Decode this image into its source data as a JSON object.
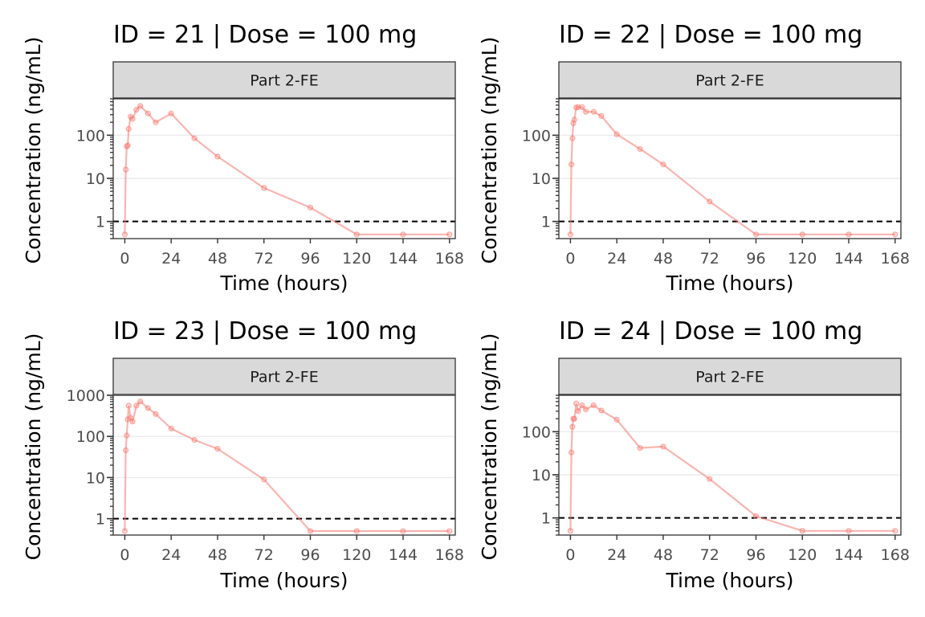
{
  "figure": {
    "colors": {
      "series": "#F8766D",
      "lloq_line": "#000000",
      "strip_fill": "#D9D9D9",
      "grid": "#EBEBEB"
    }
  },
  "chart_data": [
    {
      "type": "line",
      "title": "ID = 21 | Dose = 100 mg",
      "facet": "Part 2-FE",
      "xlabel": "Time (hours)",
      "ylabel": "Concentration (ng/mL)",
      "xlim": [
        -6,
        171
      ],
      "xticks": [
        0,
        24,
        48,
        72,
        96,
        120,
        144,
        168
      ],
      "yscale": "log",
      "ylim": [
        0.4,
        700
      ],
      "yticks": [
        1,
        10,
        100
      ],
      "ytick_labels": [
        "1",
        "10",
        "100"
      ],
      "reference_line": {
        "y": 1,
        "style": "dashed"
      },
      "grid": true,
      "x": [
        0,
        0.5,
        1,
        1.5,
        2,
        3,
        4,
        6,
        8,
        12,
        16,
        24,
        36,
        48,
        72,
        96,
        120,
        144,
        168
      ],
      "y": [
        0.5,
        16,
        55,
        58,
        140,
        270,
        240,
        390,
        480,
        320,
        200,
        320,
        85,
        32,
        6,
        2.1,
        0.5,
        0.5,
        0.5
      ]
    },
    {
      "type": "line",
      "title": "ID = 22 | Dose = 100 mg",
      "facet": "Part 2-FE",
      "xlabel": "Time (hours)",
      "ylabel": "Concentration (ng/mL)",
      "xlim": [
        -6,
        171
      ],
      "xticks": [
        0,
        24,
        48,
        72,
        96,
        120,
        144,
        168
      ],
      "yscale": "log",
      "ylim": [
        0.4,
        700
      ],
      "yticks": [
        1,
        10,
        100
      ],
      "ytick_labels": [
        "1",
        "10",
        "100"
      ],
      "reference_line": {
        "y": 1,
        "style": "dashed"
      },
      "grid": true,
      "x": [
        0,
        0.5,
        1,
        1.5,
        2,
        3,
        4,
        6,
        8,
        12,
        16,
        24,
        36,
        48,
        72,
        96,
        120,
        144,
        168
      ],
      "y": [
        0.5,
        21,
        85,
        190,
        230,
        440,
        450,
        450,
        350,
        350,
        280,
        105,
        48,
        21,
        2.9,
        0.5,
        0.5,
        0.5,
        0.5
      ]
    },
    {
      "type": "line",
      "title": "ID = 23 | Dose = 100 mg",
      "facet": "Part 2-FE",
      "xlabel": "Time (hours)",
      "ylabel": "Concentration (ng/mL)",
      "xlim": [
        -6,
        171
      ],
      "xticks": [
        0,
        24,
        48,
        72,
        96,
        120,
        144,
        168
      ],
      "yscale": "log",
      "ylim": [
        0.4,
        1000
      ],
      "yticks": [
        1,
        10,
        100,
        1000
      ],
      "ytick_labels": [
        "1",
        "10",
        "100",
        "1000"
      ],
      "reference_line": {
        "y": 1,
        "style": "dashed"
      },
      "grid": true,
      "x": [
        0,
        0.5,
        1,
        1.5,
        2,
        3,
        4,
        6,
        8,
        12,
        16,
        24,
        36,
        48,
        72,
        96,
        120,
        144,
        168
      ],
      "y": [
        0.5,
        46,
        105,
        260,
        560,
        280,
        230,
        560,
        710,
        490,
        350,
        155,
        82,
        50,
        9,
        0.5,
        0.5,
        0.5,
        0.5
      ]
    },
    {
      "type": "line",
      "title": "ID = 24 | Dose = 100 mg",
      "facet": "Part 2-FE",
      "xlabel": "Time (hours)",
      "ylabel": "Concentration (ng/mL)",
      "xlim": [
        -6,
        171
      ],
      "xticks": [
        0,
        24,
        48,
        72,
        96,
        120,
        144,
        168
      ],
      "yscale": "log",
      "ylim": [
        0.4,
        700
      ],
      "yticks": [
        1,
        10,
        100
      ],
      "ytick_labels": [
        "1",
        "10",
        "100"
      ],
      "reference_line": {
        "y": 1,
        "style": "dashed"
      },
      "grid": true,
      "x": [
        0,
        0.5,
        1,
        1.5,
        2,
        3,
        4,
        6,
        8,
        12,
        16,
        24,
        36,
        48,
        72,
        96,
        120,
        144,
        168
      ],
      "y": [
        0.5,
        33,
        130,
        200,
        200,
        450,
        300,
        410,
        330,
        410,
        310,
        190,
        42,
        45,
        8,
        1.1,
        0.5,
        0.5,
        0.5
      ]
    }
  ]
}
